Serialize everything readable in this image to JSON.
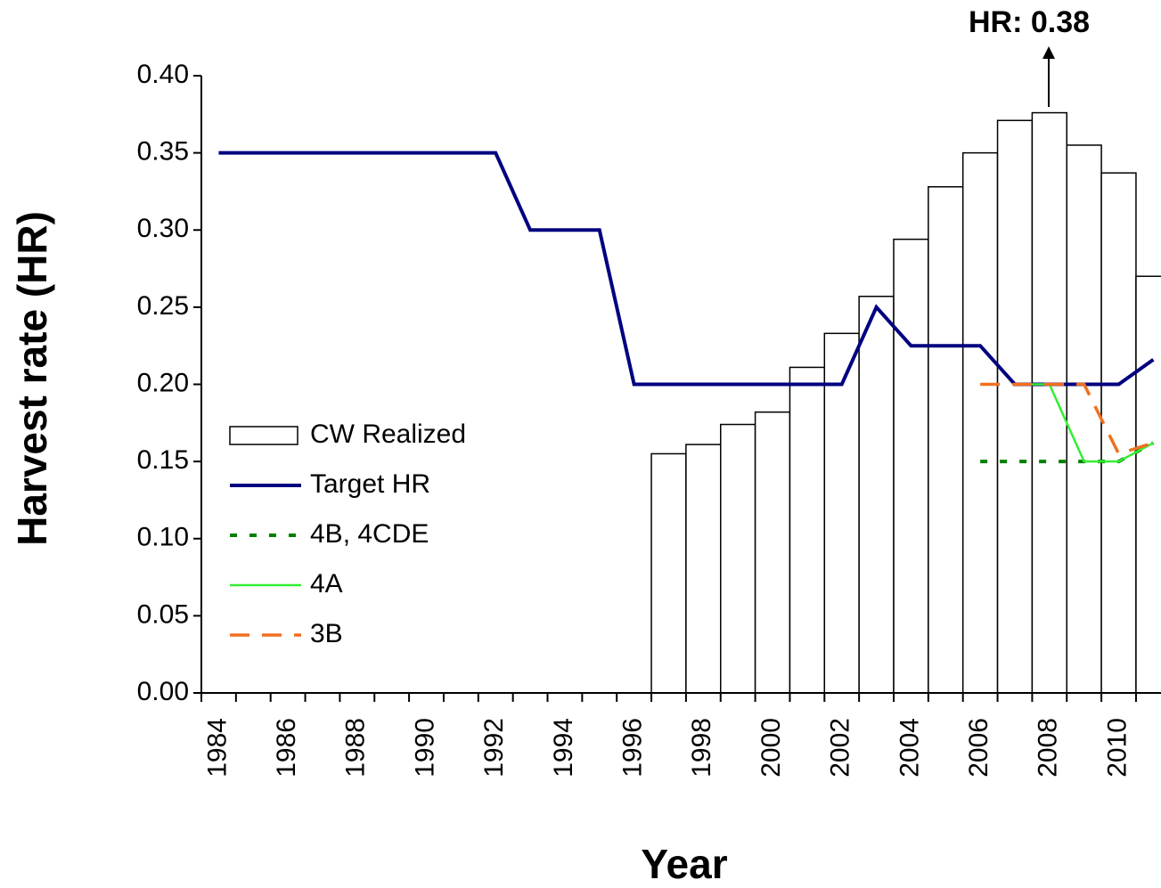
{
  "chart_data": {
    "type": "bar",
    "annotation": "HR: 0.38",
    "x_label": "Year",
    "y_label": "Harvest rate (HR)",
    "categories": [
      "1984",
      null,
      "1986",
      null,
      "1988",
      null,
      "1990",
      null,
      "1992",
      null,
      "1994",
      null,
      "1996",
      null,
      "1998",
      null,
      "2000",
      null,
      "2002",
      null,
      "2004",
      null,
      "2006",
      null,
      "2008",
      null,
      "2010",
      null
    ],
    "ylim": [
      0,
      0.4
    ],
    "yticks": [
      {
        "value": 0,
        "label": "0.00"
      },
      {
        "value": 0.05,
        "label": "0.05"
      },
      {
        "value": 0.1,
        "label": "0.10"
      },
      {
        "value": 0.15,
        "label": "0.15"
      },
      {
        "value": 0.2,
        "label": "0.20"
      },
      {
        "value": 0.25,
        "label": "0.25"
      },
      {
        "value": 0.3,
        "label": "0.30"
      },
      {
        "value": 0.35,
        "label": "0.35"
      },
      {
        "value": 0.4,
        "label": "0.40"
      }
    ],
    "series": [
      {
        "name": "CW Realized",
        "type": "bar",
        "color": "#ffffff",
        "stroke": "#000000",
        "values": [
          null,
          null,
          null,
          null,
          null,
          null,
          null,
          null,
          null,
          null,
          null,
          null,
          null,
          0.155,
          0.161,
          0.174,
          0.182,
          0.211,
          0.233,
          0.257,
          0.294,
          0.328,
          0.35,
          0.371,
          0.376,
          0.355,
          0.337,
          0.27
        ]
      },
      {
        "name": "Target HR",
        "type": "line",
        "style": "solid",
        "width": 4,
        "color": "#000080",
        "values": [
          0.35,
          0.35,
          0.35,
          0.35,
          0.35,
          0.35,
          0.35,
          0.35,
          0.35,
          0.3,
          0.3,
          0.3,
          0.2,
          0.2,
          0.2,
          0.2,
          0.2,
          0.2,
          0.2,
          0.25,
          0.225,
          0.225,
          0.225,
          0.2,
          0.2,
          0.2,
          0.2,
          0.216
        ]
      },
      {
        "name": "4B, 4CDE",
        "type": "line",
        "style": "dotted",
        "width": 4,
        "color": "#008000",
        "values": [
          null,
          null,
          null,
          null,
          null,
          null,
          null,
          null,
          null,
          null,
          null,
          null,
          null,
          null,
          null,
          null,
          null,
          null,
          null,
          null,
          null,
          null,
          0.15,
          0.15,
          0.15,
          0.15,
          0.15,
          0.162
        ]
      },
      {
        "name": "4A",
        "type": "line",
        "style": "solid",
        "width": 2.5,
        "color": "#33ee33",
        "values": [
          null,
          null,
          null,
          null,
          null,
          null,
          null,
          null,
          null,
          null,
          null,
          null,
          null,
          null,
          null,
          null,
          null,
          null,
          null,
          null,
          null,
          null,
          null,
          0.2,
          0.2,
          0.15,
          0.15,
          0.162
        ]
      },
      {
        "name": "3B",
        "type": "line",
        "style": "dashed",
        "width": 3.5,
        "color": "#f07020",
        "values": [
          null,
          null,
          null,
          null,
          null,
          null,
          null,
          null,
          null,
          null,
          null,
          null,
          null,
          null,
          null,
          null,
          null,
          null,
          null,
          null,
          null,
          null,
          0.2,
          0.2,
          0.2,
          0.2,
          0.155,
          0.162
        ]
      }
    ]
  }
}
